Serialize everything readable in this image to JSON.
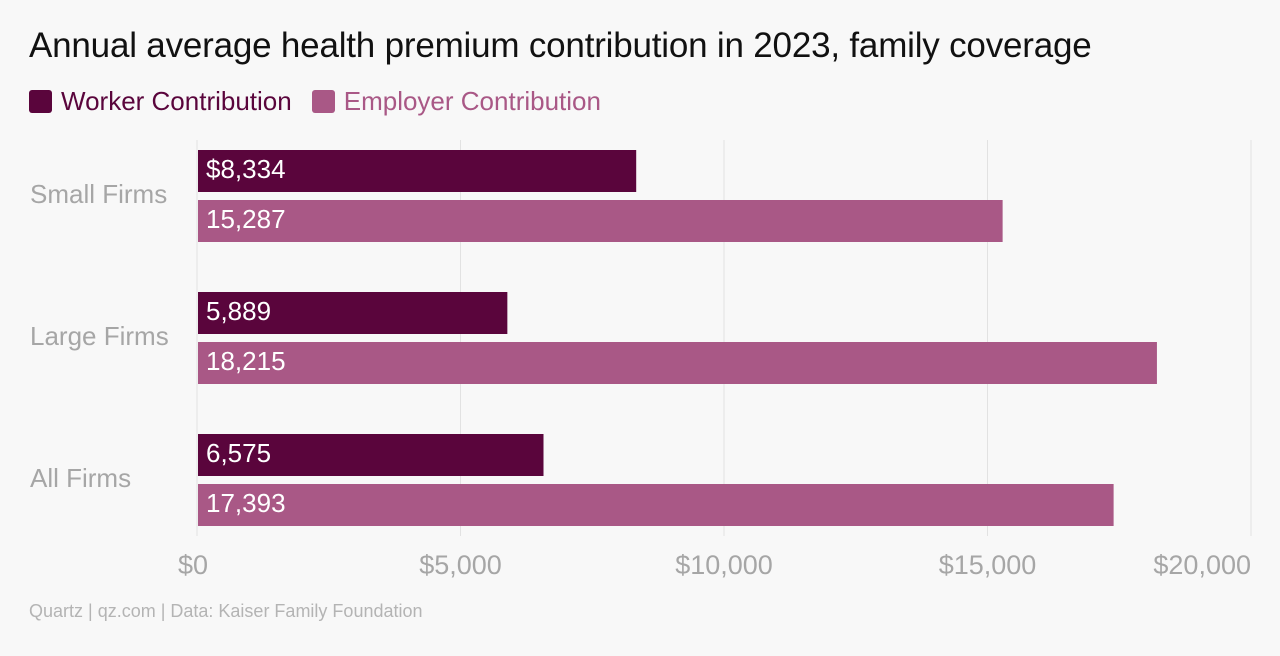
{
  "title": "Annual average health premium contribution in 2023, family coverage",
  "footer": "Quartz | qz.com | Data: Kaiser Family Foundation",
  "colors": {
    "worker": "#5a053c",
    "employer": "#a95886",
    "grid": "#e2e2e2",
    "category_label": "#a6a6a6",
    "tick_label": "#a6a6a6",
    "bar_label": "#ffffff"
  },
  "chart_data": {
    "type": "bar",
    "orientation": "horizontal",
    "title": "Annual average health premium contribution in 2023, family coverage",
    "xlabel": "",
    "ylabel": "",
    "categories": [
      "Small Firms",
      "Large Firms",
      "All Firms"
    ],
    "series": [
      {
        "name": "Worker Contribution",
        "values": [
          8334,
          5889,
          6575
        ],
        "labels": [
          "$8,334",
          "5,889",
          "6,575"
        ]
      },
      {
        "name": "Employer Contribution",
        "values": [
          15287,
          18215,
          17393
        ],
        "labels": [
          "15,287",
          "18,215",
          "17,393"
        ]
      }
    ],
    "xlim": [
      0,
      20000
    ],
    "xticks": [
      0,
      5000,
      10000,
      15000,
      20000
    ],
    "xtick_labels": [
      "$0",
      "$5,000",
      "$10,000",
      "$15,000",
      "$20,000"
    ],
    "grid": "vertical",
    "legend": "top-left"
  }
}
